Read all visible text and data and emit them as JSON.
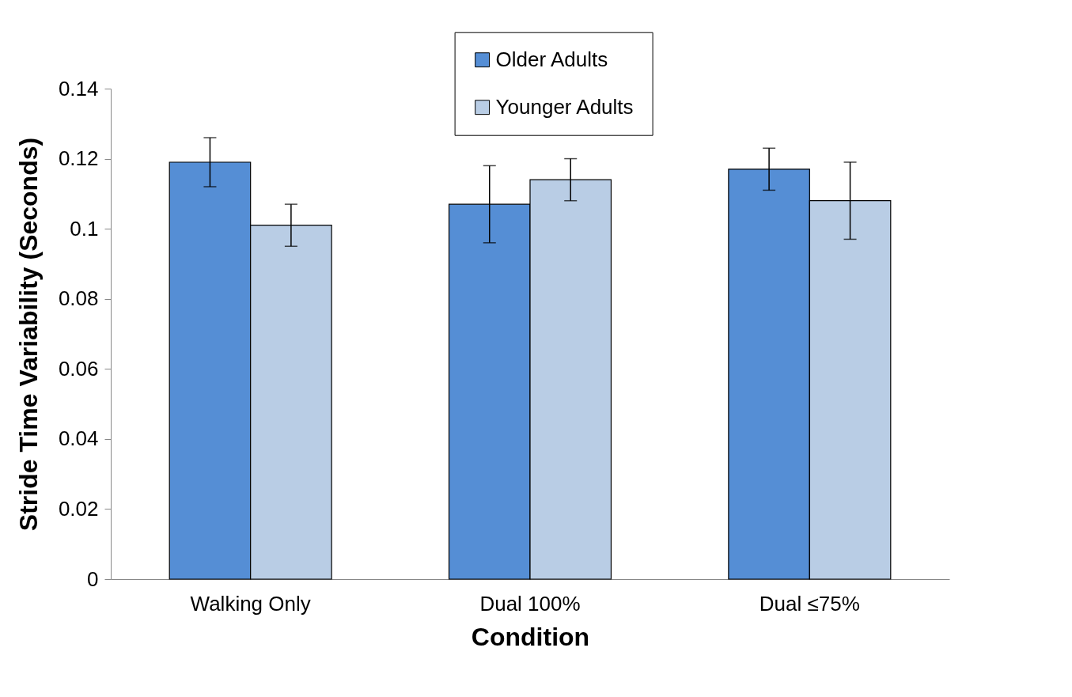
{
  "chart_data": {
    "type": "bar",
    "xlabel": "Condition",
    "ylabel": "Stride Time Variability (Seconds)",
    "categories": [
      "Walking Only",
      "Dual 100%",
      "Dual ≤75%"
    ],
    "series": [
      {
        "name": "Older Adults",
        "color": "#558ed5",
        "values": [
          0.119,
          0.107,
          0.117
        ],
        "errors": [
          0.007,
          0.011,
          0.006
        ]
      },
      {
        "name": "Younger Adults",
        "color": "#b9cde5",
        "values": [
          0.101,
          0.114,
          0.108
        ],
        "errors": [
          0.006,
          0.006,
          0.011
        ]
      }
    ],
    "ylim": [
      0,
      0.14
    ],
    "yticks": [
      0,
      0.02,
      0.04,
      0.06,
      0.08,
      0.1,
      0.12,
      0.14
    ],
    "grid": false,
    "legend": "top"
  }
}
